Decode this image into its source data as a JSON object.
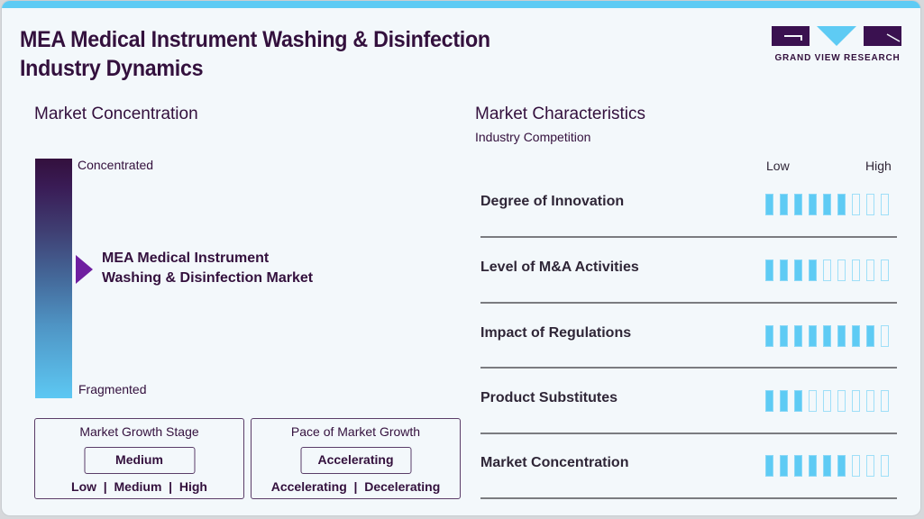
{
  "header": {
    "title_line1": "MEA Medical Instrument Washing & Disinfection",
    "title_line2": "Industry Dynamics",
    "logo": {
      "icon": "grand-view-research-logo",
      "text": "GRAND VIEW RESEARCH"
    }
  },
  "concentration": {
    "heading": "Market Concentration",
    "top_label": "Concentrated",
    "bottom_label": "Fragmented",
    "pointer_icon": "triangle-right-icon",
    "market_line1": "MEA Medical Instrument",
    "market_line2": "Washing & Disinfection Market"
  },
  "growth_stage": {
    "title": "Market Growth Stage",
    "value": "Medium",
    "options": "Low  |  Medium  |  High"
  },
  "growth_pace": {
    "title": "Pace of Market Growth",
    "value": "Accelerating",
    "options": "Accelerating  |  Decelerating"
  },
  "characteristics": {
    "heading": "Market Characteristics",
    "subheading": "Industry Competition",
    "scale_low": "Low",
    "scale_high": "High",
    "max_segments": 9,
    "rows": [
      {
        "label": "Degree of Innovation",
        "level": 6
      },
      {
        "label": "Level of M&A Activities",
        "level": 4
      },
      {
        "label": "Impact of Regulations",
        "level": 8
      },
      {
        "label": "Product Substitutes",
        "level": 3
      },
      {
        "label": "Market Concentration",
        "level": 6
      }
    ]
  },
  "colors": {
    "primary_dark": "#33103d",
    "accent_blue": "#5ecbf4",
    "pointer_purple": "#6f1fa0",
    "background": "#f3f8fb"
  }
}
